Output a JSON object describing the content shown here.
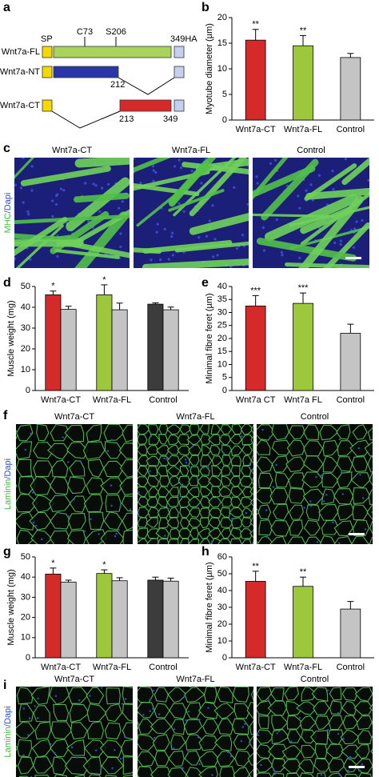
{
  "panel_labels": [
    "a",
    "b",
    "c",
    "d",
    "e",
    "f",
    "g",
    "h",
    "i"
  ],
  "construct_diagram": {
    "constructs": [
      "Wnt7a-FL",
      "Wnt7a-NT",
      "Wnt7a-CT"
    ],
    "markers": [
      "SP",
      "C73",
      "S206",
      "349HA"
    ],
    "positions": [
      "212",
      "213",
      "349"
    ]
  },
  "chart_data": [
    {
      "type": "bar",
      "y_label": "Myotube diameter (µm)",
      "categories": [
        "Wnt7a-CT",
        "Wnt7a-FL",
        "Control"
      ],
      "values": [
        15.6,
        14.5,
        12.2
      ],
      "errors": [
        2.1,
        2.0,
        0.8
      ],
      "colors": [
        "#d42a2a",
        "#9dc83c",
        "#c4c4c4"
      ],
      "annotations": [
        "**",
        "**",
        null
      ],
      "ylim": [
        0,
        20
      ],
      "yticks": [
        0,
        5,
        10,
        15,
        20
      ]
    },
    {
      "type": "grouped_bar",
      "y_label": "Muscle weight (mg)",
      "categories": [
        "Wnt7a-CT",
        "Wnt7a-FL",
        "Control"
      ],
      "series": [
        {
          "colors": [
            "#d42a2a",
            "#9dc83c",
            "#3c3c3c"
          ],
          "values": [
            46,
            46,
            41.5
          ],
          "errors": [
            1.8,
            4.8,
            0.6
          ],
          "annotations": [
            "*",
            "*",
            null
          ]
        },
        {
          "color": "#c4c4c4",
          "values": [
            39,
            38.8,
            38.8
          ],
          "errors": [
            1.5,
            3.2,
            1.3
          ]
        }
      ],
      "ylim": [
        0,
        50
      ],
      "yticks": [
        0,
        10,
        20,
        30,
        40,
        50
      ]
    },
    {
      "type": "bar",
      "y_label": "Minimal fibre feret (µm)",
      "categories": [
        "Wnt7a CT",
        "Wnt7a FL",
        "Control"
      ],
      "values": [
        32.5,
        33.5,
        22
      ],
      "errors": [
        4,
        4,
        3.5
      ],
      "colors": [
        "#d42a2a",
        "#9dc83c",
        "#c4c4c4"
      ],
      "annotations": [
        "***",
        "***",
        null
      ],
      "ylim": [
        0,
        40
      ],
      "yticks": [
        0,
        5,
        10,
        15,
        20,
        25,
        30,
        35,
        40
      ]
    },
    {
      "type": "grouped_bar",
      "y_label": "Muscle weight (mg)",
      "categories": [
        "Wnt7a-CT",
        "Wnt7a-FL",
        "Control"
      ],
      "series": [
        {
          "colors": [
            "#d42a2a",
            "#9dc83c",
            "#3c3c3c"
          ],
          "values": [
            41.5,
            41.8,
            38.5
          ],
          "errors": [
            3,
            1.8,
            1.5
          ],
          "annotations": [
            "*",
            "*",
            null
          ]
        },
        {
          "color": "#c4c4c4",
          "values": [
            37.5,
            38.2,
            38
          ],
          "errors": [
            1,
            1.5,
            1.5
          ]
        }
      ],
      "ylim": [
        0,
        50
      ],
      "yticks": [
        0,
        10,
        20,
        30,
        40,
        50
      ]
    },
    {
      "type": "bar",
      "y_label": "Minimal fibre feret (µm)",
      "categories": [
        "Wnt7a-CT",
        "Wnt7a-FL",
        "Control"
      ],
      "values": [
        45.5,
        42.5,
        29
      ],
      "errors": [
        6,
        5.5,
        4.5
      ],
      "colors": [
        "#d42a2a",
        "#9dc83c",
        "#c4c4c4"
      ],
      "annotations": [
        "**",
        "**",
        null
      ],
      "ylim": [
        0,
        60
      ],
      "yticks": [
        0,
        10,
        20,
        30,
        40,
        50,
        60
      ]
    }
  ],
  "micrographs": [
    {
      "columns": [
        "Wnt7a-CT",
        "Wnt7a-FL",
        "Control"
      ],
      "stain": [
        "MHC",
        "/Dapi"
      ]
    },
    {
      "columns": [
        "Wnt7a-CT",
        "Wnt7a-FL",
        "Control"
      ],
      "stain": [
        "Laminin",
        "/Dapi"
      ]
    },
    {
      "columns": [
        "Wnt7a-CT",
        "Wnt7a-FL",
        "Control"
      ],
      "stain": [
        "Laminin",
        "/Dapi"
      ]
    }
  ]
}
